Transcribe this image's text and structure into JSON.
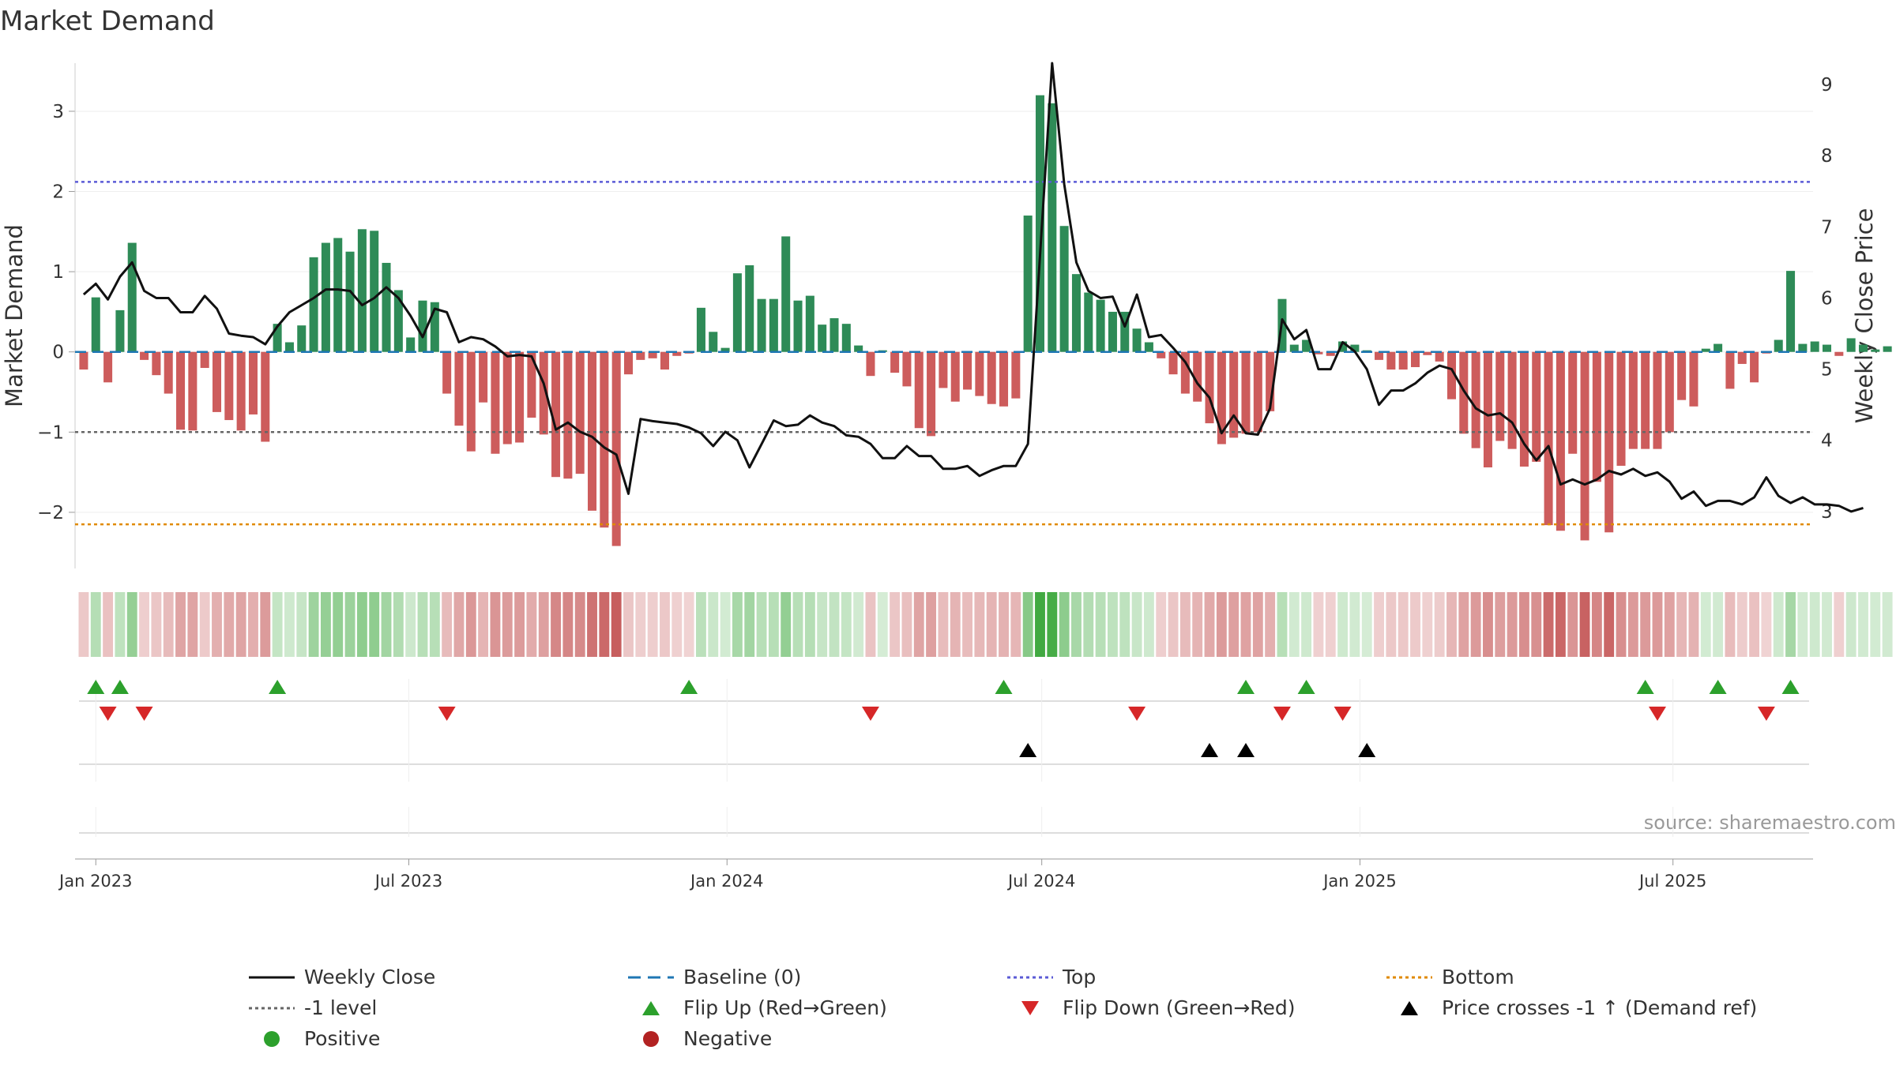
{
  "chart_data": {
    "type": "bar",
    "title": "Market Demand",
    "ylabel": "Market Demand",
    "y2label": "Weekly Close Price",
    "ylim": [
      -2.7,
      3.6
    ],
    "y2lim": [
      2.2,
      9.3
    ],
    "yticks": [
      3,
      2,
      1,
      0,
      -1,
      -2
    ],
    "ytick_labels": [
      "3",
      "2",
      "1",
      "0",
      "−1",
      "−2"
    ],
    "y2ticks": [
      9,
      8,
      7,
      6,
      5,
      4,
      3
    ],
    "y2tick_labels": [
      "9",
      "8",
      "7",
      "6",
      "5",
      "4",
      "3"
    ],
    "x_domain": [
      "2022-12-20",
      "2025-09-20"
    ],
    "xticks": [
      "2023-01-01",
      "2023-07-01",
      "2024-01-01",
      "2024-07-01",
      "2025-01-01",
      "2025-07-01"
    ],
    "xtick_labels": [
      "Jan 2023",
      "Jul 2023",
      "Jan 2024",
      "Jul 2024",
      "Jan 2025",
      "Jul 2025"
    ],
    "start_week": "2022-12-25",
    "week_days": 7,
    "demand": [
      -0.22,
      0.68,
      -0.38,
      0.52,
      1.36,
      -0.1,
      -0.29,
      -0.52,
      -0.97,
      -0.98,
      -0.2,
      -0.75,
      -0.85,
      -0.98,
      -0.78,
      -1.12,
      0.35,
      0.12,
      0.33,
      1.18,
      1.36,
      1.42,
      1.25,
      1.53,
      1.51,
      1.11,
      0.77,
      0.18,
      0.64,
      0.62,
      -0.52,
      -0.92,
      -1.24,
      -0.63,
      -1.27,
      -1.15,
      -1.13,
      -0.82,
      -1.03,
      -1.56,
      -1.58,
      -1.52,
      -1.98,
      -2.19,
      -2.42,
      -0.28,
      -0.1,
      -0.08,
      -0.22,
      -0.05,
      -0.02,
      0.55,
      0.25,
      0.05,
      0.98,
      1.08,
      0.66,
      0.66,
      1.44,
      0.64,
      0.7,
      0.34,
      0.42,
      0.35,
      0.08,
      -0.3,
      0.02,
      -0.26,
      -0.43,
      -0.95,
      -1.05,
      -0.45,
      -0.62,
      -0.47,
      -0.55,
      -0.65,
      -0.68,
      -0.58,
      1.7,
      3.2,
      3.1,
      1.57,
      0.97,
      0.74,
      0.65,
      0.5,
      0.5,
      0.29,
      0.12,
      -0.08,
      -0.28,
      -0.52,
      -0.62,
      -0.89,
      -1.15,
      -1.07,
      -1.02,
      -1.0,
      -0.74,
      0.66,
      0.09,
      0.15,
      -0.03,
      -0.05,
      0.13,
      0.09,
      0.02,
      -0.1,
      -0.22,
      -0.22,
      -0.19,
      -0.04,
      -0.12,
      -0.59,
      -1.02,
      -1.2,
      -1.44,
      -1.11,
      -1.21,
      -1.43,
      -1.37,
      -2.16,
      -2.23,
      -1.27,
      -2.35,
      -1.62,
      -2.25,
      -1.42,
      -1.21,
      -1.21,
      -1.21,
      -1.0,
      -0.6,
      -0.68,
      0.04,
      0.1,
      -0.46,
      -0.15,
      -0.38,
      -0.02,
      0.15,
      1.01,
      0.1,
      0.13,
      0.09,
      -0.05,
      0.17,
      0.09,
      0.03,
      0.07
    ],
    "close": [
      6.05,
      6.2,
      5.98,
      6.3,
      6.5,
      6.1,
      6.0,
      6.0,
      5.8,
      5.8,
      6.03,
      5.85,
      5.5,
      5.47,
      5.45,
      5.35,
      5.6,
      5.8,
      5.9,
      6.0,
      6.12,
      6.12,
      6.1,
      5.9,
      6.0,
      6.15,
      6.0,
      5.75,
      5.45,
      5.85,
      5.8,
      5.38,
      5.45,
      5.42,
      5.32,
      5.18,
      5.2,
      5.18,
      4.8,
      4.15,
      4.25,
      4.12,
      4.05,
      3.9,
      3.8,
      3.25,
      4.3,
      4.27,
      4.25,
      4.23,
      4.18,
      4.1,
      3.92,
      4.12,
      4.0,
      3.62,
      3.95,
      4.28,
      4.2,
      4.22,
      4.35,
      4.25,
      4.2,
      4.07,
      4.05,
      3.95,
      3.75,
      3.75,
      3.92,
      3.78,
      3.78,
      3.6,
      3.6,
      3.64,
      3.5,
      3.58,
      3.64,
      3.64,
      3.95,
      6.6,
      9.3,
      7.6,
      6.5,
      6.1,
      6.0,
      6.02,
      5.6,
      6.05,
      5.45,
      5.48,
      5.3,
      5.1,
      4.8,
      4.6,
      4.1,
      4.35,
      4.1,
      4.08,
      4.45,
      5.7,
      5.42,
      5.55,
      5.0,
      5.0,
      5.38,
      5.25,
      5.0,
      4.5,
      4.7,
      4.7,
      4.8,
      4.95,
      5.05,
      5.0,
      4.7,
      4.45,
      4.35,
      4.38,
      4.25,
      3.95,
      3.72,
      3.92,
      3.38,
      3.45,
      3.38,
      3.45,
      3.57,
      3.52,
      3.6,
      3.5,
      3.55,
      3.42,
      3.18,
      3.28,
      3.08,
      3.15,
      3.15,
      3.1,
      3.2,
      3.48,
      3.22,
      3.12,
      3.2,
      3.1,
      3.1,
      3.08,
      3.0,
      3.05
    ],
    "levels": {
      "baseline": 0,
      "top": 2.12,
      "minus_one": -1.0,
      "bottom": -2.15
    },
    "flip_up_weeks": [
      1,
      3,
      16,
      50,
      76,
      96,
      101,
      129,
      135,
      141
    ],
    "flip_down_weeks": [
      2,
      5,
      30,
      65,
      87,
      99,
      104,
      130,
      139
    ],
    "price_cross_weeks": [
      78,
      93,
      96,
      106
    ],
    "colors": {
      "positive_bar": "#2e8b57",
      "negative_bar": "#cd5c5c",
      "close_line": "#111111",
      "baseline": "#1f77b4",
      "top": "#5b5bd6",
      "minus_one": "#666666",
      "bottom": "#e08a00",
      "flip_up": "#2ca02c",
      "flip_down": "#d62728",
      "price_cross": "#000000",
      "positive_dot": "#2ca02c",
      "negative_dot": "#b22222",
      "heat_pos": "#2ca02c",
      "heat_neg": "#b22222"
    },
    "source": "source: sharemaestro.com",
    "legend": [
      {
        "label": "Weekly Close",
        "kind": "line",
        "color": "#111111"
      },
      {
        "label": "Baseline (0)",
        "kind": "dash",
        "color": "#1f77b4"
      },
      {
        "label": "Top",
        "kind": "dot",
        "color": "#5b5bd6"
      },
      {
        "label": "Bottom",
        "kind": "dot",
        "color": "#e08a00"
      },
      {
        "label": "-1 level",
        "kind": "dot",
        "color": "#666666"
      },
      {
        "label": "Flip Up (Red→Green)",
        "kind": "tri-up",
        "color": "#2ca02c"
      },
      {
        "label": "Flip Down (Green→Red)",
        "kind": "tri-down",
        "color": "#d62728"
      },
      {
        "label": "Price crosses -1 ↑ (Demand ref)",
        "kind": "tri-up",
        "color": "#000000"
      },
      {
        "label": "Positive",
        "kind": "circle",
        "color": "#2ca02c"
      },
      {
        "label": "Negative",
        "kind": "circle",
        "color": "#b22222"
      }
    ]
  }
}
